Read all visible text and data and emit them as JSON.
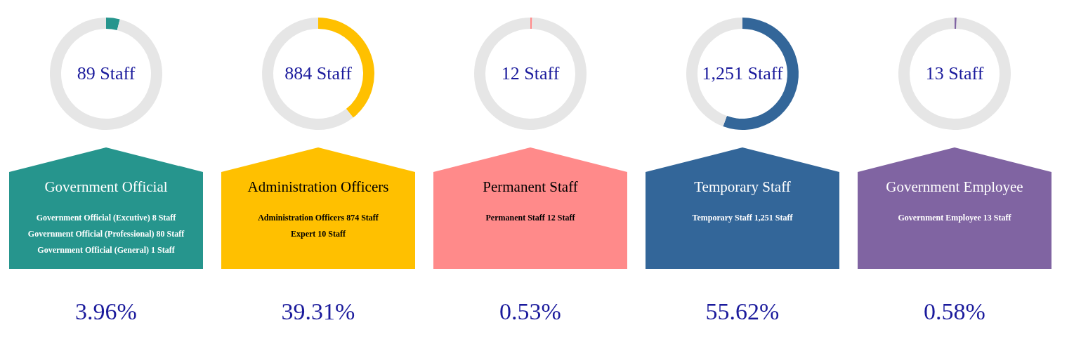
{
  "chart_data": [
    {
      "type": "donut",
      "title": "Government Official",
      "categories": [
        null,
        null
      ],
      "values": [
        3.96,
        96.04
      ],
      "colors": [
        "#26958d",
        "#e6e6e6"
      ],
      "annotations": [
        "89 Staff",
        "Government Official  (Excutive)   8 Staff",
        "Government Official  (Professional)  80 Staff",
        "Government Official  (General)  1 Staff",
        "3.96%"
      ]
    },
    {
      "type": "donut",
      "title": "Administration Officers",
      "categories": [
        null,
        null
      ],
      "values": [
        39.31,
        60.69
      ],
      "colors": [
        "#ffc000",
        "#e6e6e6"
      ],
      "annotations": [
        "884 Staff",
        "Administration Officers  874 Staff",
        "Expert  10 Staff",
        "39.31%"
      ]
    },
    {
      "type": "donut",
      "title": "Permanent Staff",
      "categories": [
        null,
        null
      ],
      "values": [
        0.53,
        99.47
      ],
      "colors": [
        "#ff8a8a",
        "#e6e6e6"
      ],
      "annotations": [
        "12 Staff",
        "Permanent Staff    12 Staff",
        "0.53%"
      ]
    },
    {
      "type": "donut",
      "title": "Temporary Staff",
      "categories": [
        null,
        null
      ],
      "values": [
        55.62,
        44.38
      ],
      "colors": [
        "#336699",
        "#e6e6e6"
      ],
      "annotations": [
        "1,251 Staff",
        "Temporary Staff  1,251 Staff",
        "55.62%"
      ]
    },
    {
      "type": "donut",
      "title": "Government Employee",
      "categories": [
        null,
        null
      ],
      "values": [
        0.58,
        99.42
      ],
      "colors": [
        "#8064a2",
        "#e6e6e6"
      ],
      "annotations": [
        "13 Staff",
        "Government Employee  13 Staff",
        "0.58%"
      ]
    }
  ]
}
